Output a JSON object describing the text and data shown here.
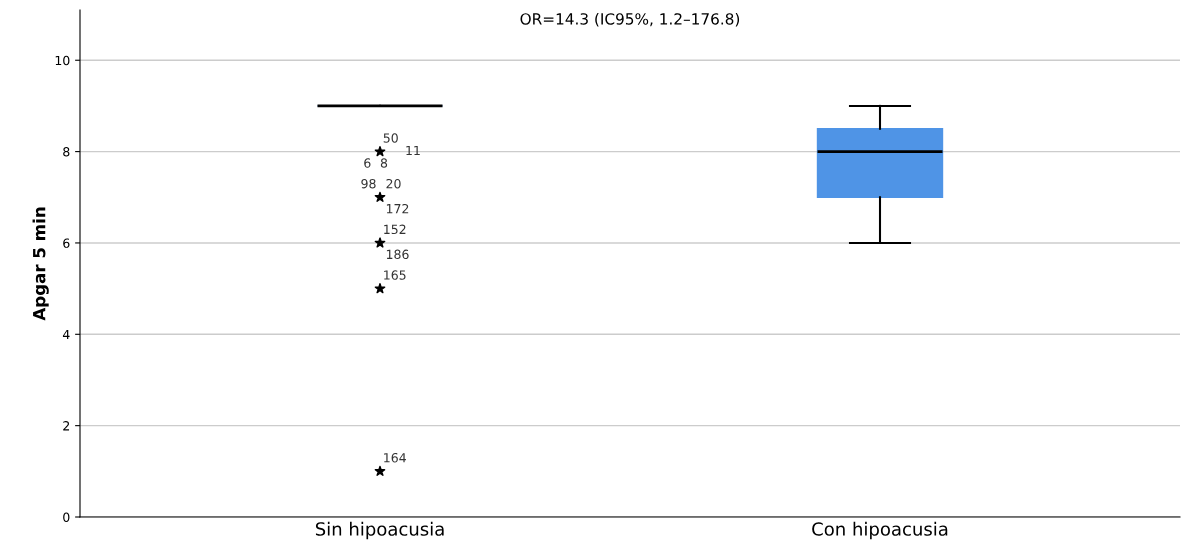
{
  "chart_data": {
    "type": "box",
    "title": "OR=14.3 (IC95%, 1.2–176.8)",
    "ylabel": "Apgar 5 min",
    "categories": [
      "Sin hipoacusia",
      "Con hipoacusia"
    ],
    "series": [
      {
        "color": "#4f94e6",
        "boxes": [
          {
            "low": 9,
            "q1": 9,
            "median": 9,
            "q3": 9,
            "high": 9
          },
          {
            "low": 6,
            "q1": 7,
            "median": 8,
            "q3": 8.5,
            "high": 9
          }
        ]
      },
      {
        "type": "scatter",
        "color": "#000000",
        "x": [
          "Sin hipoacusia",
          "Sin hipoacusia",
          "Sin hipoacusia",
          "Sin hipoacusia",
          "Sin hipoacusia"
        ],
        "values": [
          8,
          7,
          6,
          5,
          1
        ]
      }
    ],
    "ylim": [
      0,
      11.1
    ],
    "yticks": [
      0,
      2,
      4,
      6,
      8,
      10
    ],
    "grid": "y",
    "marker": "star",
    "annotations": [
      {
        "text": "50",
        "x": "Sin hipoacusia",
        "y": 8
      },
      {
        "text": "11",
        "x": "Sin hipoacusia",
        "y": 8
      },
      {
        "text": "6",
        "x": "Sin hipoacusia",
        "y": 8
      },
      {
        "text": "8",
        "x": "Sin hipoacusia",
        "y": 8
      },
      {
        "text": "98",
        "x": "Sin hipoacusia",
        "y": 7
      },
      {
        "text": "20",
        "x": "Sin hipoacusia",
        "y": 7
      },
      {
        "text": "172",
        "x": "Sin hipoacusia",
        "y": 7
      },
      {
        "text": "152",
        "x": "Sin hipoacusia",
        "y": 6
      },
      {
        "text": "186",
        "x": "Sin hipoacusia",
        "y": 6
      },
      {
        "text": "165",
        "x": "Sin hipoacusia",
        "y": 5
      },
      {
        "text": "164",
        "x": "Sin hipoacusia",
        "y": 1
      }
    ]
  }
}
